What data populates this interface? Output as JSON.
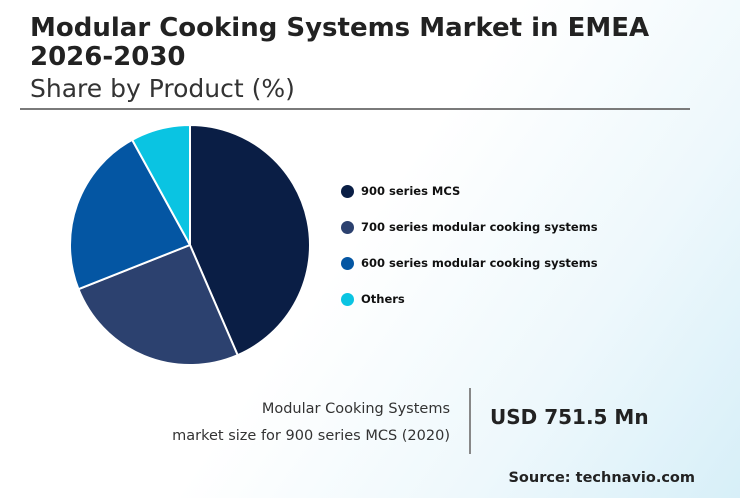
{
  "header": {
    "title": "Modular Cooking Systems Market in EMEA 2026-2030",
    "subtitle": "Share by Product (%)"
  },
  "chart_data": {
    "type": "pie",
    "categories": [
      "900 series MCS",
      "700 series modular cooking systems",
      "600 series modular cooking systems",
      "Others"
    ],
    "values": [
      43.5,
      25.5,
      23.0,
      8.0
    ],
    "colors": [
      "#0a1e45",
      "#2c416f",
      "#0456a3",
      "#0ac4e2"
    ]
  },
  "market_size": {
    "label_line1": "Modular Cooking Systems",
    "label_line2": "market size for 900 series MCS (2020)",
    "value": "USD 751.5 Mn"
  },
  "source": "Source: technavio.com"
}
